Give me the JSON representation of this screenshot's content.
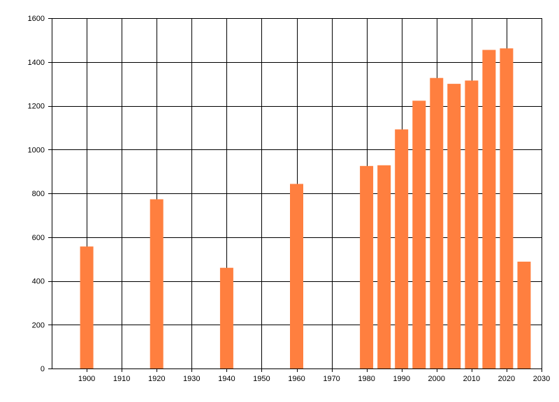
{
  "chart_data": {
    "type": "bar",
    "title": "",
    "xlabel": "",
    "ylabel": "",
    "xlim": [
      1890,
      2030
    ],
    "ylim": [
      0,
      1600
    ],
    "x_ticks": [
      1900,
      1910,
      1920,
      1930,
      1940,
      1950,
      1960,
      1970,
      1980,
      1990,
      2000,
      2010,
      2020,
      2030
    ],
    "y_ticks": [
      0,
      200,
      400,
      600,
      800,
      1000,
      1200,
      1400,
      1600
    ],
    "grid": true,
    "bar_color": "#ff7f3f",
    "grid_color": "#000000",
    "bars": [
      {
        "x": 1900,
        "value": 557
      },
      {
        "x": 1920,
        "value": 773
      },
      {
        "x": 1940,
        "value": 460
      },
      {
        "x": 1960,
        "value": 843
      },
      {
        "x": 1980,
        "value": 925
      },
      {
        "x": 1985,
        "value": 928
      },
      {
        "x": 1990,
        "value": 1092
      },
      {
        "x": 1995,
        "value": 1223
      },
      {
        "x": 2000,
        "value": 1327
      },
      {
        "x": 2005,
        "value": 1300
      },
      {
        "x": 2010,
        "value": 1315
      },
      {
        "x": 2015,
        "value": 1455
      },
      {
        "x": 2020,
        "value": 1462
      },
      {
        "x": 2025,
        "value": 488
      }
    ]
  }
}
